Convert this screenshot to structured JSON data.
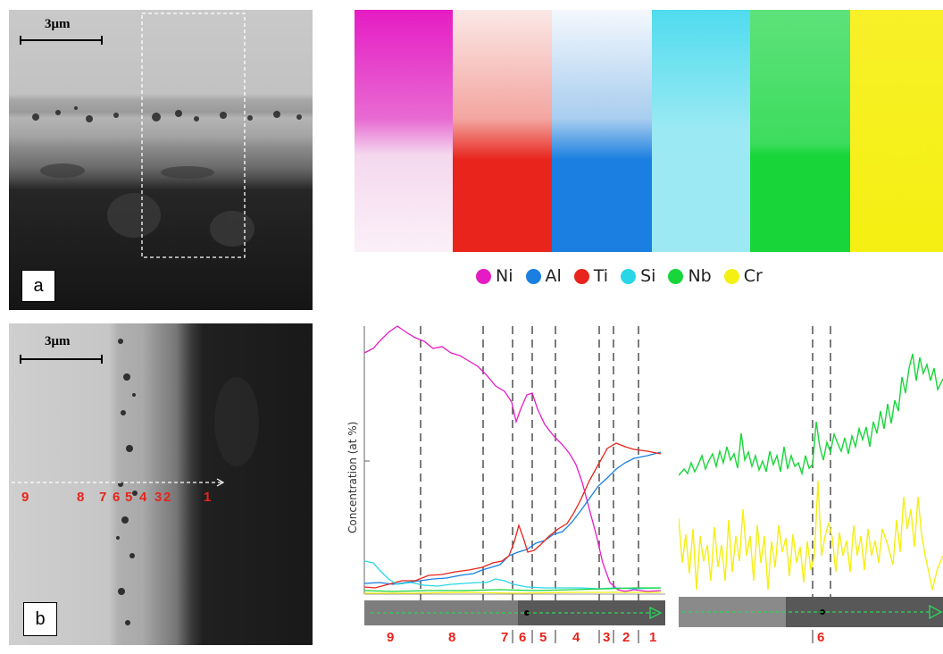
{
  "panel_a": {
    "label": "a",
    "scale_bar": "3μm"
  },
  "panel_b": {
    "label": "b",
    "scale_bar": "3μm",
    "region_numbers": [
      "9",
      "8",
      "7",
      "6",
      "5",
      "4",
      "3",
      "2",
      "1"
    ]
  },
  "element_maps": [
    {
      "element": "Ni",
      "color": "#e51cc4"
    },
    {
      "element": "Ti",
      "color": "#e8241c"
    },
    {
      "element": "Al",
      "color": "#1a7fe0"
    },
    {
      "element": "Si",
      "color": "#29d6e8"
    },
    {
      "element": "Nb",
      "color": "#18d63a"
    },
    {
      "element": "Cr",
      "color": "#f5ef12"
    }
  ],
  "legend": [
    {
      "label": "Ni",
      "color": "#e51cc4"
    },
    {
      "label": "Al",
      "color": "#1a7fe0"
    },
    {
      "label": "Ti",
      "color": "#e8241c"
    },
    {
      "label": "Si",
      "color": "#29d6e8"
    },
    {
      "label": "Nb",
      "color": "#18d63a"
    },
    {
      "label": "Cr",
      "color": "#f5ef12"
    }
  ],
  "linescan": {
    "ylabel": "Concentration (at %)",
    "region_labels": [
      "9",
      "8",
      "7",
      "6",
      "5",
      "4",
      "3",
      "2",
      "1"
    ],
    "right_region_label": "6"
  }
}
